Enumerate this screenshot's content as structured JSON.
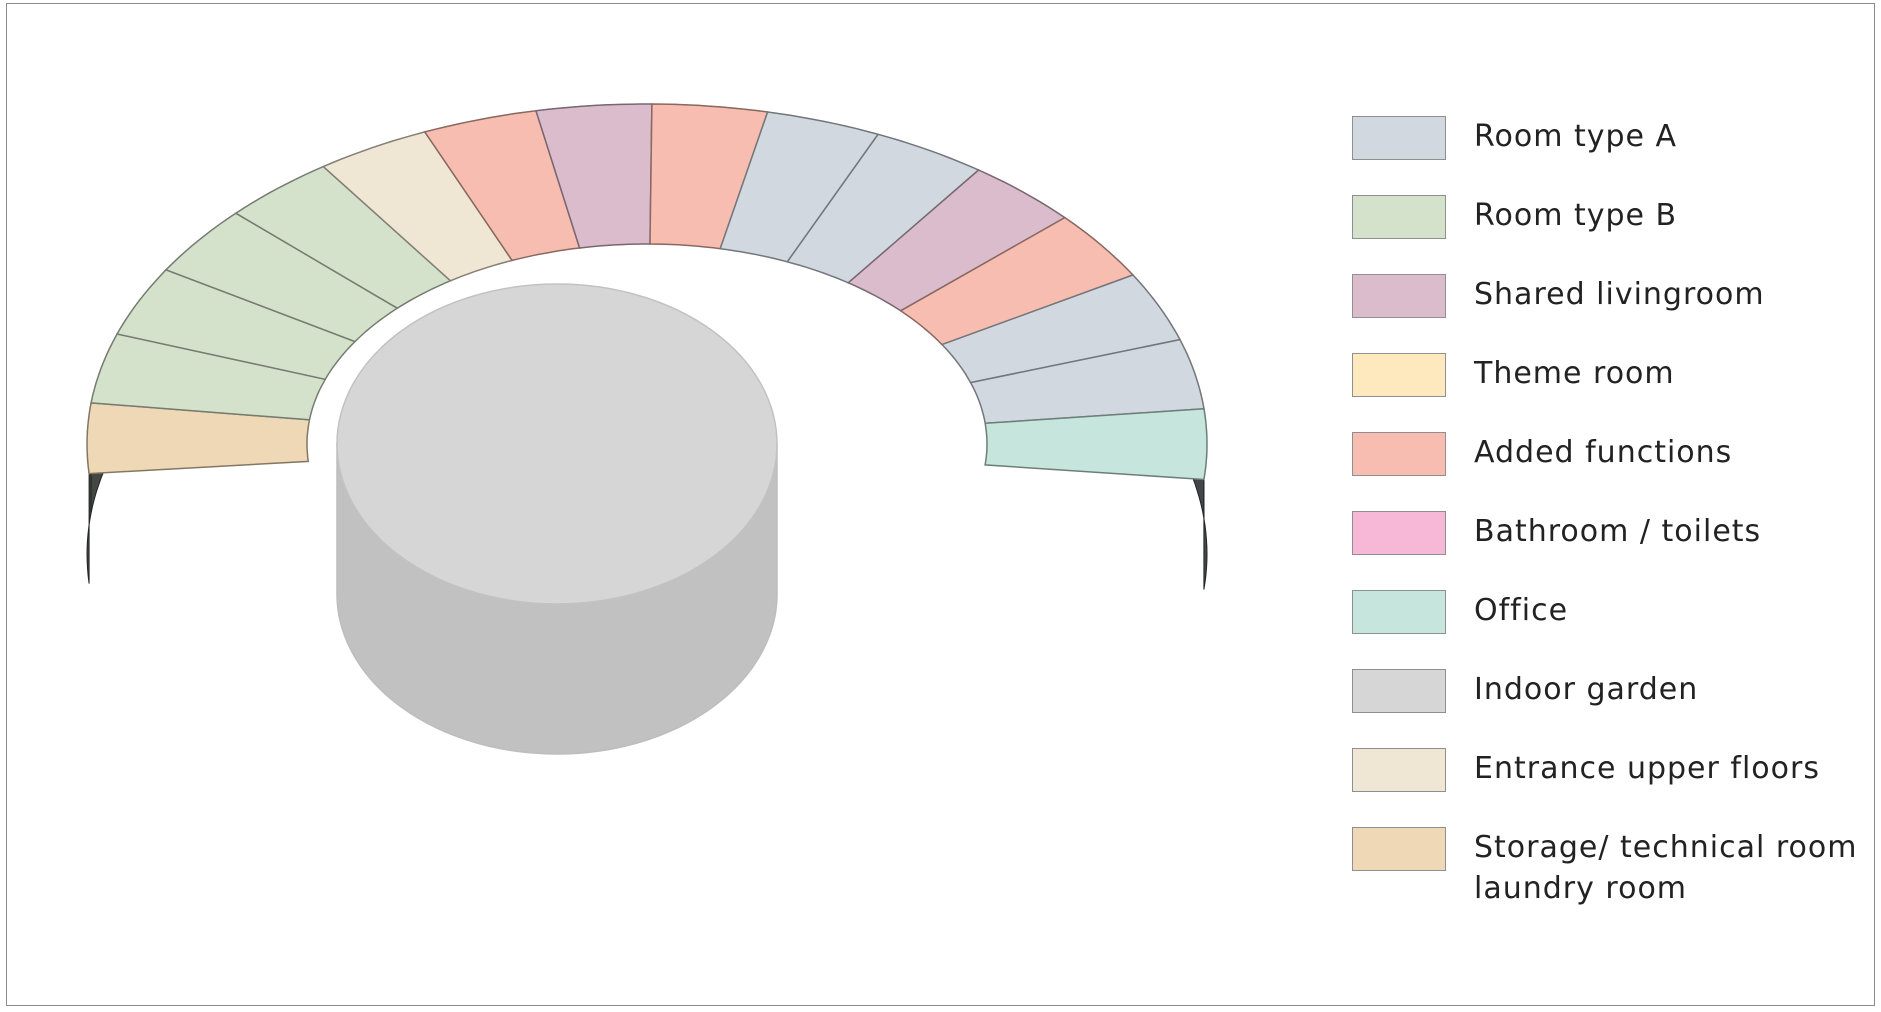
{
  "legend": {
    "items": [
      {
        "label": "Room type A",
        "color": "#d1d8e0"
      },
      {
        "label": "Room type B",
        "color": "#d4e2cc"
      },
      {
        "label": "Shared livingroom",
        "color": "#dbbccc"
      },
      {
        "label": "Theme room",
        "color": "#fde9bd"
      },
      {
        "label": "Added functions",
        "color": "#f8bdb1"
      },
      {
        "label": "Bathroom / toilets",
        "color": "#f6b8d6"
      },
      {
        "label": "Office",
        "color": "#c6e5dc"
      },
      {
        "label": "Indoor garden",
        "color": "#d6d6d6"
      },
      {
        "label": "Entrance upper floors",
        "color": "#f0e6d4"
      },
      {
        "label": "Storage/ technical room\nlaundry room",
        "color": "#efd8b5"
      }
    ]
  },
  "ring_segments": [
    {
      "function": "Storage/ technical room laundry room"
    },
    {
      "function": "Room type B"
    },
    {
      "function": "Room type B"
    },
    {
      "function": "Room type B"
    },
    {
      "function": "Room type B"
    },
    {
      "function": "Entrance upper floors"
    },
    {
      "function": "Added functions"
    },
    {
      "function": "Shared livingroom"
    },
    {
      "function": "Added functions"
    },
    {
      "function": "Room type A"
    },
    {
      "function": "Room type A"
    },
    {
      "function": "Shared livingroom"
    },
    {
      "function": "Added functions"
    },
    {
      "function": "Room type A"
    },
    {
      "function": "Room type A"
    },
    {
      "function": "Office"
    }
  ]
}
